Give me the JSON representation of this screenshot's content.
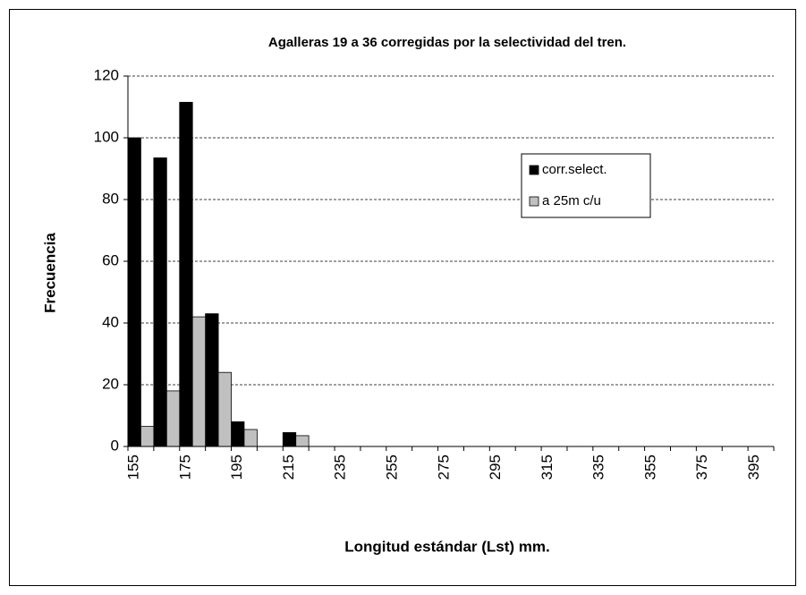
{
  "chart_data": {
    "type": "bar",
    "title": "Agalleras  19 a 36 corregidas por la selectividad del tren.",
    "xlabel": "Longitud estándar (Lst) mm.",
    "ylabel": "Frecuencia",
    "categories": [
      "155",
      null,
      "175",
      null,
      "195",
      null,
      "215",
      null,
      "235",
      null,
      "255",
      null,
      "275",
      null,
      "295",
      null,
      "315",
      null,
      "335",
      null,
      "355",
      null,
      "375",
      null,
      "395"
    ],
    "series": [
      {
        "name": "corr.select.",
        "color": "#000000",
        "values": [
          100,
          93.5,
          111.5,
          43,
          8,
          0,
          4.5,
          0,
          0,
          0,
          0,
          0,
          0,
          0,
          0,
          0,
          0,
          0,
          0,
          0,
          0,
          0,
          0,
          0,
          0
        ]
      },
      {
        "name": "a 25m c/u",
        "color": "#c0c0c0",
        "values": [
          6.5,
          18,
          42,
          24,
          5.5,
          0,
          3.5,
          0,
          0,
          0,
          0,
          0,
          0,
          0,
          0,
          0,
          0,
          0,
          0,
          0,
          0,
          0,
          0,
          0,
          0
        ]
      }
    ],
    "ylim": [
      0,
      120
    ],
    "yticks": [
      0,
      20,
      40,
      60,
      80,
      100,
      120
    ],
    "grid": true,
    "legend": "upper right"
  }
}
